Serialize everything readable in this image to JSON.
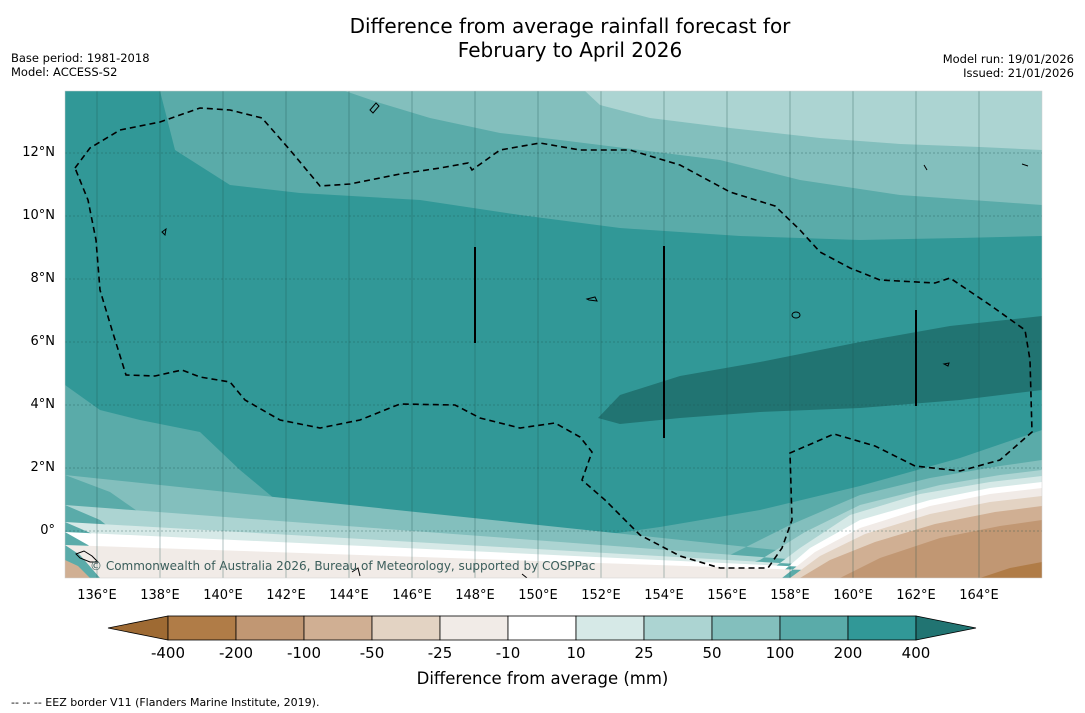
{
  "title": {
    "line1": "Difference from average rainfall forecast for",
    "line2": "February to April 2026"
  },
  "meta": {
    "base_period": "Base period: 1981-2018",
    "model": "Model: ACCESS-S2",
    "model_run": "Model run: 19/01/2026",
    "issued": "Issued: 21/01/2026"
  },
  "axes": {
    "lat_labels": [
      "12°N",
      "10°N",
      "8°N",
      "6°N",
      "4°N",
      "2°N",
      "0°"
    ],
    "lon_labels": [
      "136°E",
      "138°E",
      "140°E",
      "142°E",
      "144°E",
      "146°E",
      "148°E",
      "150°E",
      "152°E",
      "154°E",
      "156°E",
      "158°E",
      "160°E",
      "162°E",
      "164°E"
    ]
  },
  "colorbar": {
    "labels": [
      "-400",
      "-200",
      "-100",
      "-50",
      "-25",
      "-10",
      "10",
      "25",
      "50",
      "100",
      "200",
      "400"
    ],
    "colors": [
      "#9e6a33",
      "#b07c47",
      "#c19773",
      "#d0af93",
      "#e3d3c3",
      "#f1ebe7",
      "#ffffff",
      "#d6e9e7",
      "#acd4d2",
      "#83bfbd",
      "#5aaba9",
      "#319897",
      "#217472"
    ],
    "title": "Difference from average (mm)"
  },
  "copyright": "© Commonwealth of Australia 2026, Bureau of Meteorology, supported by COSPPac",
  "footnote": "--  --  -- EEZ border V11 (Flanders Marine Institute, 2019).",
  "legend_line": {
    "name": "EEZ border V11"
  }
}
